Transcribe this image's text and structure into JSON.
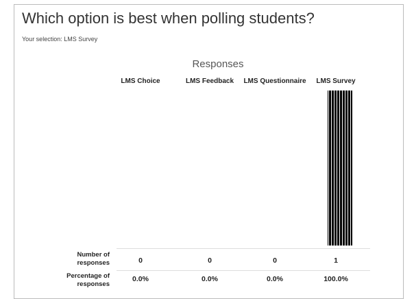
{
  "title": "Which option is best when polling students?",
  "selection": "Your selection: LMS Survey",
  "results": {
    "heading": "Responses",
    "row_labels": [
      "Number of responses",
      "Percentage of responses"
    ],
    "options": [
      {
        "name": "LMS Choice",
        "count": 0,
        "percent": "0.0%"
      },
      {
        "name": "LMS Feedback",
        "count": 0,
        "percent": "0.0%"
      },
      {
        "name": "LMS Questionnaire",
        "count": 0,
        "percent": "0.0%"
      },
      {
        "name": "LMS Survey",
        "count": 1,
        "percent": "100.0%"
      }
    ]
  }
}
